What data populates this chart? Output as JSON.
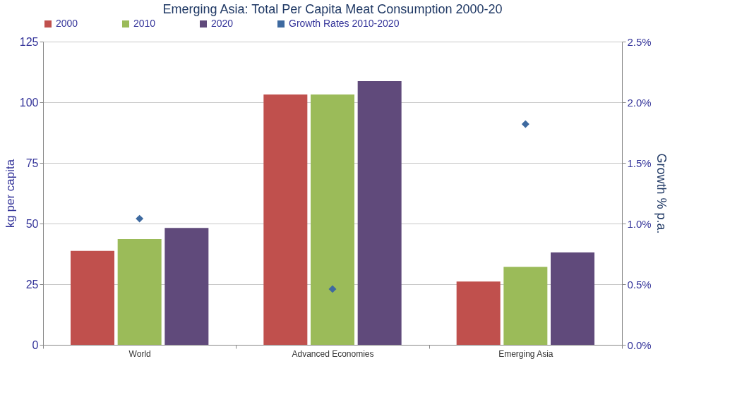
{
  "chart_data": {
    "type": "bar",
    "title": "Emerging Asia: Total Per Capita Meat Consumption 2000-20",
    "categories": [
      "World",
      "Advanced Economies",
      "Emerging Asia"
    ],
    "series": [
      {
        "name": "2000",
        "color": "#c0504d",
        "values": [
          38.7,
          103.2,
          26.1
        ]
      },
      {
        "name": "2010",
        "color": "#9bbb59",
        "values": [
          43.6,
          103.2,
          32.1
        ]
      },
      {
        "name": "2020",
        "color": "#604a7b",
        "values": [
          48.2,
          108.7,
          38.1
        ]
      },
      {
        "name": "Growth Rates 2010-2020",
        "color": "#3e6aa0",
        "type": "scatter",
        "marker": "diamond",
        "axis": "y2",
        "values": [
          1.04,
          0.46,
          1.82
        ]
      }
    ],
    "ylabel": "kg per capita",
    "y2label": "Growth %  p.a.",
    "ylim": [
      0,
      125
    ],
    "yticks": [
      0,
      25,
      50,
      75,
      100,
      125
    ],
    "y2lim": [
      0,
      2.5
    ],
    "y2ticks": [
      {
        "value": 0,
        "label": "0.0%"
      },
      {
        "value": 0.5,
        "label": "0.5%"
      },
      {
        "value": 1,
        "label": "1.0%"
      },
      {
        "value": 1.5,
        "label": "1.5%"
      },
      {
        "value": 2,
        "label": "2.0%"
      },
      {
        "value": 2.5,
        "label": "2.5%"
      }
    ],
    "grid": "y",
    "legend": "top"
  }
}
